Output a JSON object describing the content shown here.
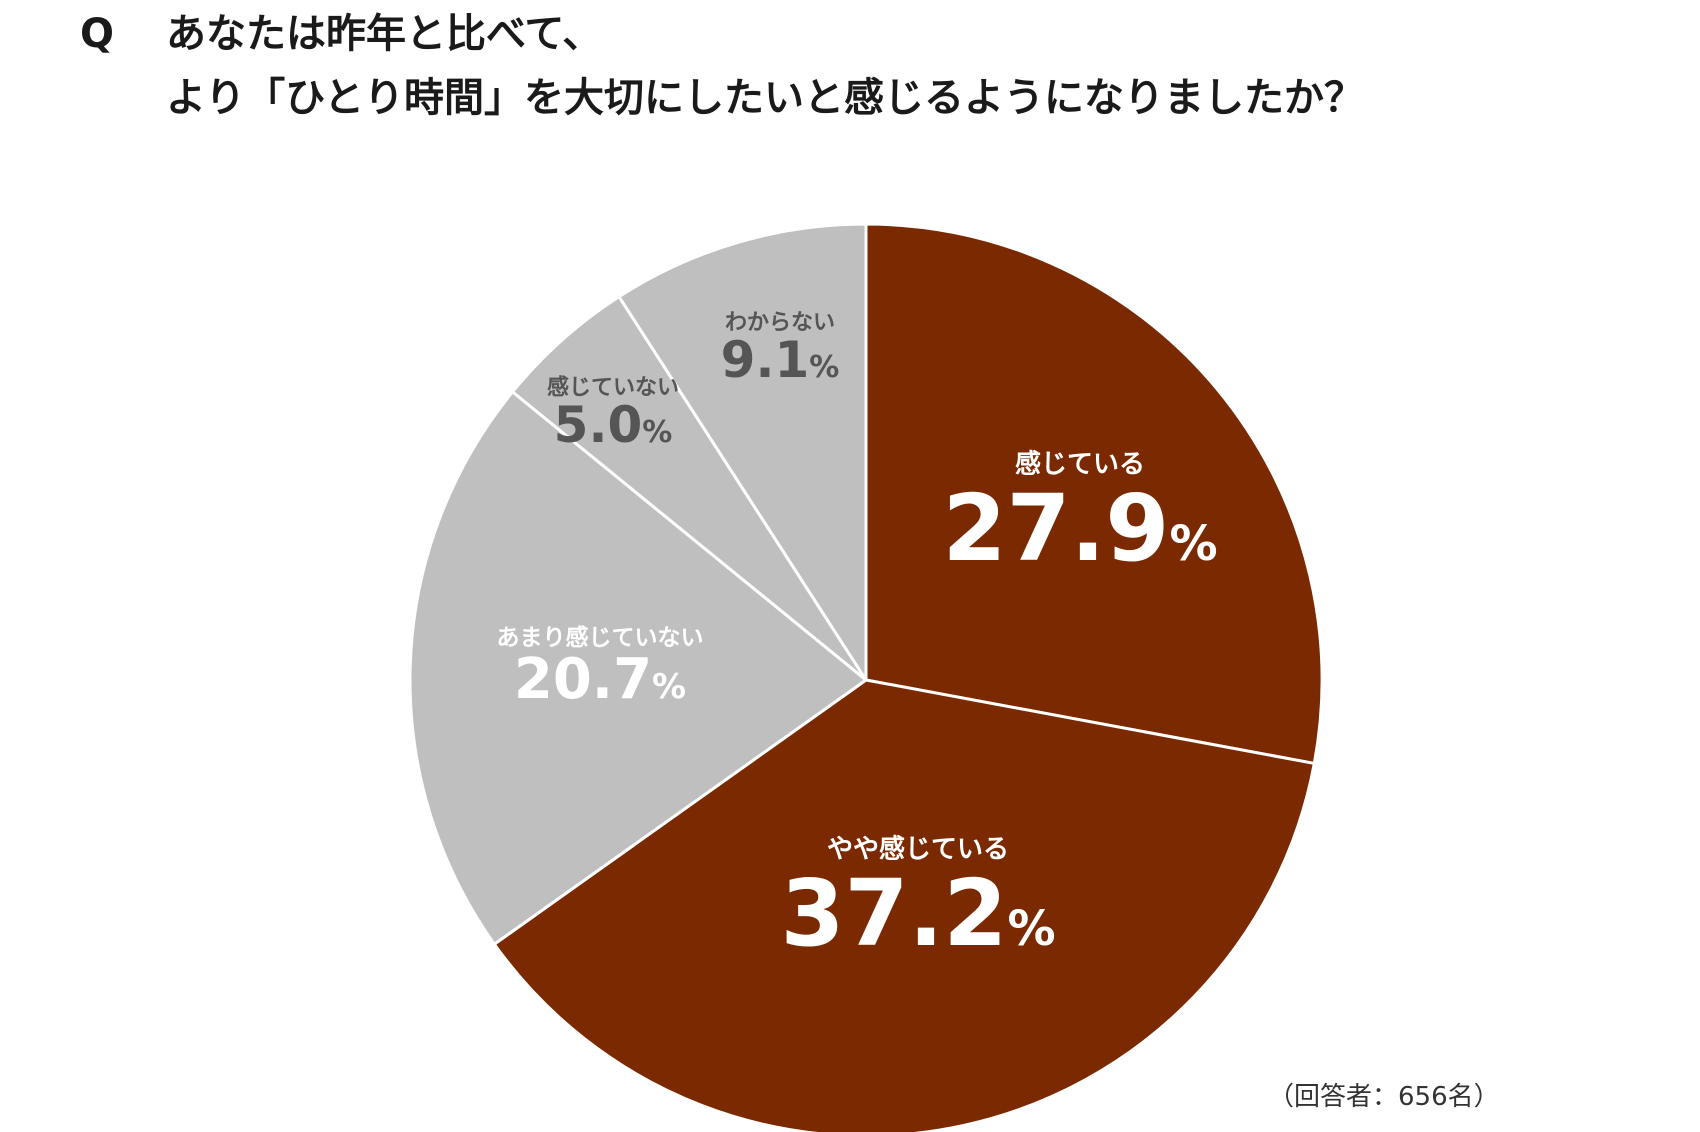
{
  "question": {
    "marker": "Q",
    "line1": "あなたは昨年と比べて、",
    "line2": "より「ひとり時間」を大切にしたいと感じるようになりましたか？"
  },
  "respondents_note": "（回答者：656名）",
  "colors": {
    "agree": "#7b2900",
    "neutral": "#bfbfbf",
    "label_on_dark": "#ffffff",
    "label_on_light": "#555555"
  },
  "chart_data": {
    "type": "pie",
    "unit": "%",
    "start": "12 o'clock",
    "direction": "clockwise",
    "slices": [
      {
        "label": "感じている",
        "value": 27.9,
        "value_text": "27.9",
        "color": "#7b2900",
        "text_color": "#ffffff"
      },
      {
        "label": "やや感じている",
        "value": 37.2,
        "value_text": "37.2",
        "color": "#7b2900",
        "text_color": "#ffffff"
      },
      {
        "label": "あまり感じていない",
        "value": 20.7,
        "value_text": "20.7",
        "color": "#bfbfbf",
        "text_color": "#ffffff"
      },
      {
        "label": "感じていない",
        "value": 5.0,
        "value_text": "5.0",
        "color": "#bfbfbf",
        "text_color": "#555555"
      },
      {
        "label": "わからない",
        "value": 9.1,
        "value_text": "9.1",
        "color": "#bfbfbf",
        "text_color": "#555555"
      }
    ]
  }
}
